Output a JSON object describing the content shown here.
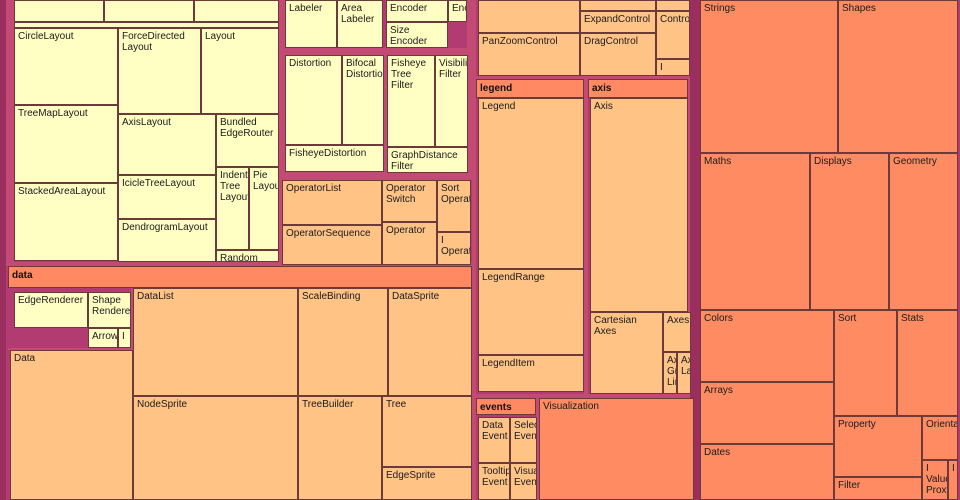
{
  "colors": {
    "background": "#b23c72",
    "yellow": "#ffffc4",
    "peach": "#ffc386",
    "lightorange": "#ffa96f",
    "orange": "#fe8b62",
    "header": "#fe8962",
    "border": "#6d3a3a"
  },
  "groups": [
    {
      "name": "data-group-header",
      "label": "data"
    },
    {
      "name": "legend-group-header",
      "label": "legend"
    },
    {
      "name": "axis-group-header",
      "label": "axis"
    },
    {
      "name": "events-group-header",
      "label": "events"
    }
  ],
  "nodes": [
    {
      "label": "CircleLayout",
      "tone": "yellow"
    },
    {
      "label": "ForceDirected\nLayout",
      "tone": "yellow"
    },
    {
      "label": "Layout",
      "tone": "yellow"
    },
    {
      "label": "TreeMapLayout",
      "tone": "yellow"
    },
    {
      "label": "AxisLayout",
      "tone": "yellow"
    },
    {
      "label": "Bundled\nEdgeRouter",
      "tone": "yellow"
    },
    {
      "label": "IcicleTreeLayout",
      "tone": "yellow"
    },
    {
      "label": "Indented\nTree\nLayout",
      "tone": "yellow"
    },
    {
      "label": "Pie\nLayout",
      "tone": "yellow"
    },
    {
      "label": "StackedAreaLayout",
      "tone": "yellow"
    },
    {
      "label": "DendrogramLayout",
      "tone": "yellow"
    },
    {
      "label": "Random",
      "tone": "yellow"
    },
    {
      "label": "Labeler",
      "tone": "yellow"
    },
    {
      "label": "Area\nLabeler",
      "tone": "yellow"
    },
    {
      "label": "Encoder",
      "tone": "yellow"
    },
    {
      "label": "Enco",
      "tone": "yellow"
    },
    {
      "label": "Size\nEncoder",
      "tone": "yellow"
    },
    {
      "label": "Distortion",
      "tone": "yellow"
    },
    {
      "label": "Bifocal\nDistortion",
      "tone": "yellow"
    },
    {
      "label": "Fisheye\nTree\nFilter",
      "tone": "yellow"
    },
    {
      "label": "Visibility\nFilter",
      "tone": "yellow"
    },
    {
      "label": "FisheyeDistortion",
      "tone": "yellow"
    },
    {
      "label": "GraphDistance\nFilter",
      "tone": "yellow"
    },
    {
      "label": "OperatorList",
      "tone": "peach"
    },
    {
      "label": "Operator\nSwitch",
      "tone": "peach"
    },
    {
      "label": "Sort\nOperator",
      "tone": "peach"
    },
    {
      "label": "OperatorSequence",
      "tone": "peach"
    },
    {
      "label": "Operator",
      "tone": "peach"
    },
    {
      "label": "I\nOperator",
      "tone": "peach"
    },
    {
      "label": "ExpandControl",
      "tone": "peach"
    },
    {
      "label": "Control",
      "tone": "peach"
    },
    {
      "label": "PanZoomControl",
      "tone": "peach"
    },
    {
      "label": "DragControl",
      "tone": "peach"
    },
    {
      "label": "I",
      "tone": "peach"
    },
    {
      "label": "EdgeRenderer",
      "tone": "yellow"
    },
    {
      "label": "Shape\nRenderer",
      "tone": "yellow"
    },
    {
      "label": "Arrow",
      "tone": "yellow"
    },
    {
      "label": "I",
      "tone": "yellow"
    },
    {
      "label": "Data",
      "tone": "peach"
    },
    {
      "label": "DataList",
      "tone": "peach"
    },
    {
      "label": "ScaleBinding",
      "tone": "peach"
    },
    {
      "label": "DataSprite",
      "tone": "peach"
    },
    {
      "label": "NodeSprite",
      "tone": "peach"
    },
    {
      "label": "TreeBuilder",
      "tone": "peach"
    },
    {
      "label": "Tree",
      "tone": "peach"
    },
    {
      "label": "EdgeSprite",
      "tone": "peach"
    },
    {
      "label": "Legend",
      "tone": "peach"
    },
    {
      "label": "LegendRange",
      "tone": "peach"
    },
    {
      "label": "LegendItem",
      "tone": "peach"
    },
    {
      "label": "Axis",
      "tone": "peach"
    },
    {
      "label": "Cartesian\nAxes",
      "tone": "peach"
    },
    {
      "label": "Axes",
      "tone": "peach"
    },
    {
      "label": "Axis\nGrid\nLine",
      "tone": "peach"
    },
    {
      "label": "Axis\nLabel",
      "tone": "peach"
    },
    {
      "label": "Data\nEvent",
      "tone": "peach"
    },
    {
      "label": "Select\nEvent",
      "tone": "peach"
    },
    {
      "label": "Tooltip\nEvent",
      "tone": "peach"
    },
    {
      "label": "Visual\nEvent",
      "tone": "peach"
    },
    {
      "label": "Visualization",
      "tone": "orange"
    },
    {
      "label": "Strings",
      "tone": "orange"
    },
    {
      "label": "Shapes",
      "tone": "orange"
    },
    {
      "label": "Maths",
      "tone": "orange"
    },
    {
      "label": "Displays",
      "tone": "orange"
    },
    {
      "label": "Geometry",
      "tone": "orange"
    },
    {
      "label": "Colors",
      "tone": "orange"
    },
    {
      "label": "Sort",
      "tone": "orange"
    },
    {
      "label": "Stats",
      "tone": "orange"
    },
    {
      "label": "Arrays",
      "tone": "orange"
    },
    {
      "label": "Property",
      "tone": "orange"
    },
    {
      "label": "Orientation",
      "tone": "orange"
    },
    {
      "label": "Dates",
      "tone": "orange"
    },
    {
      "label": "Filter",
      "tone": "orange"
    },
    {
      "label": "I\nValue\nProxy",
      "tone": "orange"
    },
    {
      "label": "I",
      "tone": "orange"
    }
  ]
}
